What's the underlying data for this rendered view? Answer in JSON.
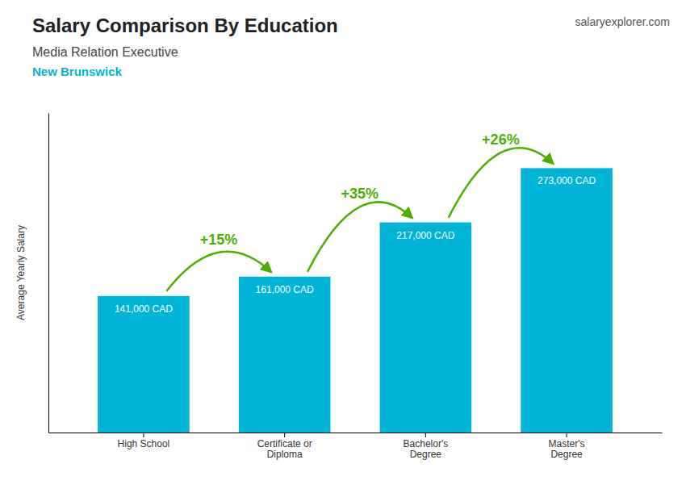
{
  "chart_data": {
    "type": "bar",
    "title": "Salary Comparison By Education",
    "subtitle": [
      "Media Relation Executive",
      "New Brunswick"
    ],
    "ylabel": "Average Yearly Salary",
    "categories": [
      "High School",
      "Certificate or\nDiploma",
      "Bachelor's\nDegree",
      "Master's\nDegree"
    ],
    "values": [
      141000,
      161000,
      217000,
      273000
    ],
    "value_labels": [
      "141,000 CAD",
      "161,000 CAD",
      "217,000 CAD",
      "273,000 CAD"
    ],
    "data_labels": true,
    "color": "#00b4d8",
    "ylim": [
      0,
      330000
    ],
    "tick_labels": "x",
    "grid": false,
    "annotations": [
      "+15%",
      "+35%",
      "+26%",
      "salaryexplorer.com"
    ]
  }
}
